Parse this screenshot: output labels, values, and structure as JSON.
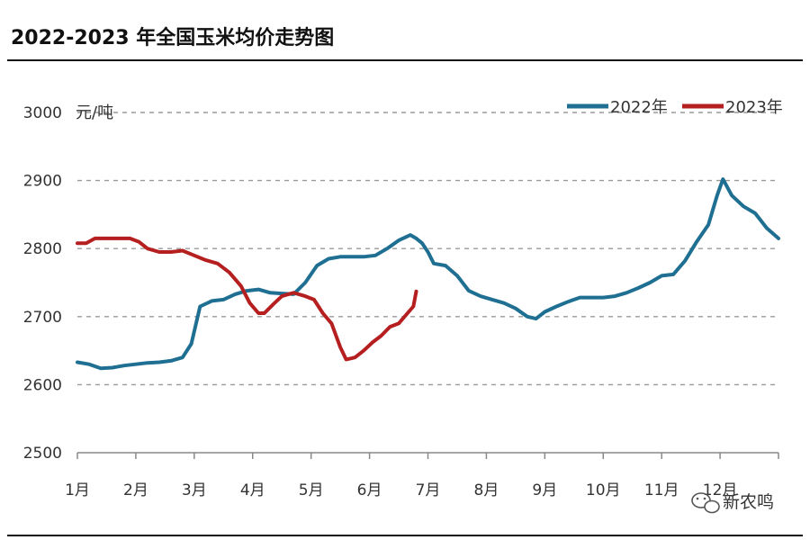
{
  "chart_data": {
    "type": "line",
    "title": "2022-2023 年全国玉米均价走势图",
    "ylabel": "元/吨",
    "xlabel": "",
    "ylim": [
      2500,
      3000
    ],
    "yticks": [
      "3000",
      "2900",
      "2800",
      "2700",
      "2600",
      "2500"
    ],
    "categories": [
      "1月",
      "2月",
      "3月",
      "4月",
      "5月",
      "6月",
      "7月",
      "8月",
      "9月",
      "10月",
      "11月",
      "12月"
    ],
    "grid": "horizontal-dashed",
    "legend": "top-right",
    "series": [
      {
        "name": "2022年",
        "color": "#1f6f93",
        "x": [
          1.0,
          1.2,
          1.4,
          1.6,
          1.8,
          2.0,
          2.2,
          2.4,
          2.6,
          2.8,
          2.95,
          3.1,
          3.3,
          3.5,
          3.7,
          3.9,
          4.1,
          4.3,
          4.5,
          4.7,
          4.9,
          5.1,
          5.3,
          5.5,
          5.7,
          5.9,
          6.1,
          6.3,
          6.5,
          6.7,
          6.8,
          6.9,
          7.0,
          7.1,
          7.3,
          7.5,
          7.7,
          7.9,
          8.1,
          8.3,
          8.5,
          8.7,
          8.85,
          9.0,
          9.2,
          9.4,
          9.6,
          9.8,
          10.0,
          10.2,
          10.4,
          10.6,
          10.8,
          11.0,
          11.2,
          11.4,
          11.6,
          11.8,
          11.95,
          12.05,
          12.2,
          12.4,
          12.6,
          12.8,
          13.0
        ],
        "values": [
          2633,
          2630,
          2624,
          2625,
          2628,
          2630,
          2632,
          2633,
          2635,
          2640,
          2660,
          2715,
          2723,
          2725,
          2733,
          2738,
          2740,
          2735,
          2734,
          2733,
          2750,
          2775,
          2785,
          2788,
          2788,
          2788,
          2790,
          2800,
          2812,
          2820,
          2815,
          2808,
          2795,
          2778,
          2775,
          2760,
          2738,
          2730,
          2725,
          2720,
          2712,
          2700,
          2697,
          2707,
          2715,
          2722,
          2728,
          2728,
          2728,
          2730,
          2735,
          2742,
          2750,
          2760,
          2762,
          2782,
          2810,
          2835,
          2878,
          2902,
          2878,
          2862,
          2852,
          2830,
          2815
        ]
      },
      {
        "name": "2023年",
        "color": "#b51f1f",
        "x": [
          1.0,
          1.15,
          1.3,
          1.5,
          1.7,
          1.9,
          2.05,
          2.2,
          2.4,
          2.6,
          2.8,
          3.0,
          3.2,
          3.4,
          3.6,
          3.8,
          3.95,
          4.1,
          4.2,
          4.35,
          4.5,
          4.7,
          4.9,
          5.05,
          5.2,
          5.35,
          5.5,
          5.6,
          5.75,
          5.9,
          6.05,
          6.2,
          6.35,
          6.5,
          6.65,
          6.75,
          6.8
        ],
        "values": [
          2808,
          2808,
          2815,
          2815,
          2815,
          2815,
          2810,
          2800,
          2795,
          2795,
          2797,
          2790,
          2783,
          2778,
          2765,
          2745,
          2720,
          2705,
          2705,
          2718,
          2730,
          2735,
          2730,
          2725,
          2705,
          2690,
          2655,
          2637,
          2640,
          2650,
          2662,
          2672,
          2685,
          2690,
          2705,
          2715,
          2737
        ]
      }
    ]
  },
  "watermark": {
    "text": "新农鸣",
    "icon": "wechat-icon"
  }
}
